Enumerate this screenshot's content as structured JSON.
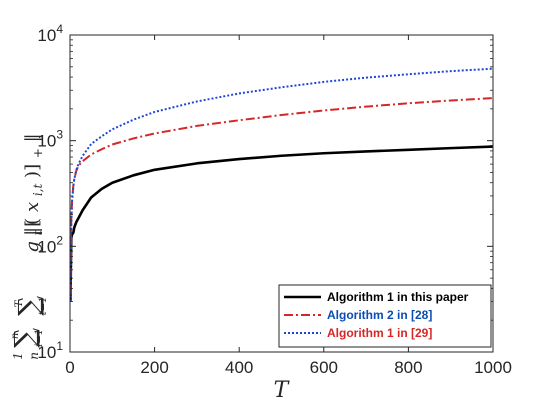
{
  "chart_data": {
    "type": "line",
    "xlabel": "T",
    "ylabel": "(1/n) Σ_{i=1}^{n} Σ_{t=1}^{T} ||[g_t(x_{i,t})]_+||",
    "xlim": [
      0,
      1000
    ],
    "ylim": [
      10,
      10000
    ],
    "yscale": "log",
    "grid": false,
    "legend_position": "bottom-right",
    "x_ticks": [
      "0",
      "200",
      "400",
      "600",
      "800",
      "1000"
    ],
    "y_ticks": [
      {
        "base": "10",
        "exp": "1"
      },
      {
        "base": "10",
        "exp": "2"
      },
      {
        "base": "10",
        "exp": "3"
      },
      {
        "base": "10",
        "exp": "4"
      }
    ],
    "series": [
      {
        "name": "Algorithm 1 in this paper",
        "color": "#000000",
        "text_color": "#000000",
        "dash": "solid",
        "x": [
          1,
          3,
          5,
          8,
          10,
          15,
          20,
          30,
          50,
          75,
          100,
          150,
          200,
          300,
          400,
          500,
          600,
          700,
          800,
          900,
          1000
        ],
        "y": [
          30,
          120,
          130,
          135,
          150,
          170,
          185,
          220,
          290,
          350,
          400,
          470,
          530,
          610,
          670,
          720,
          760,
          790,
          820,
          850,
          880
        ]
      },
      {
        "name": "Algorithm 2 in [28]",
        "color": "#D62728",
        "text_color": "#0B4DB3",
        "dash": "dashdot",
        "x": [
          1,
          3,
          5,
          8,
          10,
          15,
          20,
          30,
          50,
          75,
          100,
          150,
          200,
          300,
          400,
          500,
          600,
          700,
          800,
          900,
          1000
        ],
        "y": [
          35,
          180,
          280,
          380,
          430,
          520,
          580,
          640,
          740,
          830,
          920,
          1050,
          1170,
          1380,
          1560,
          1750,
          1930,
          2100,
          2260,
          2400,
          2530
        ]
      },
      {
        "name": "Algorithm 1 in [29]",
        "color": "#1F47D6",
        "text_color": "#D62728",
        "dash": "dotted",
        "x": [
          1,
          3,
          5,
          8,
          10,
          15,
          20,
          30,
          50,
          75,
          100,
          150,
          200,
          300,
          400,
          500,
          600,
          700,
          800,
          900,
          1000
        ],
        "y": [
          30,
          160,
          270,
          370,
          430,
          530,
          600,
          720,
          930,
          1100,
          1280,
          1580,
          1870,
          2350,
          2800,
          3200,
          3600,
          3950,
          4250,
          4550,
          4800
        ]
      }
    ]
  }
}
